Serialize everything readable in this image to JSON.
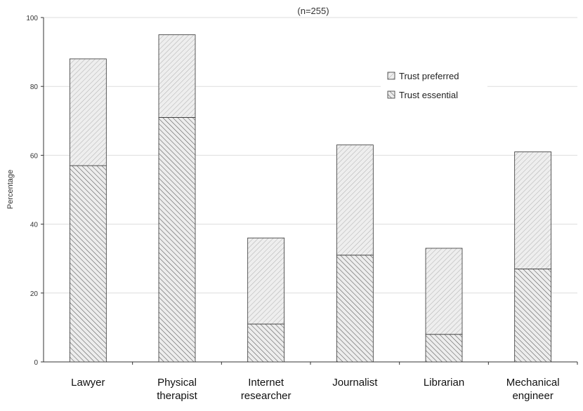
{
  "chart_data": {
    "type": "bar",
    "stacked": true,
    "title": "(n=255)",
    "xlabel": "",
    "ylabel": "Percentage",
    "ylim": [
      0,
      100
    ],
    "yticks": [
      "0",
      "20",
      "40",
      "60",
      "80",
      "100"
    ],
    "categories": [
      "Lawyer",
      "Physical therapist",
      "Internet researcher",
      "Journalist",
      "Librarian",
      "Mechanical engineer"
    ],
    "category_lines": [
      [
        "Lawyer"
      ],
      [
        "Physical",
        "therapist"
      ],
      [
        "Internet",
        "researcher"
      ],
      [
        "Journalist"
      ],
      [
        "Librarian"
      ],
      [
        "Mechanical",
        "engineer"
      ]
    ],
    "series": [
      {
        "name": "Trust essential",
        "values": [
          57,
          71,
          11,
          31,
          8,
          27
        ]
      },
      {
        "name": "Trust preferred",
        "values": [
          31,
          24,
          25,
          32,
          25,
          34
        ]
      }
    ],
    "totals": [
      88,
      95,
      36,
      63,
      33,
      61
    ],
    "grid": true,
    "legend": "top-right",
    "colors": {
      "essential_fill": "#ededed",
      "essential_hatch": "#555555",
      "preferred_fill": "#eeeeee",
      "preferred_hatch": "#a8a8a8",
      "grid": "#dddddd",
      "axis": "#333333",
      "bar_edge": "#333333"
    }
  }
}
